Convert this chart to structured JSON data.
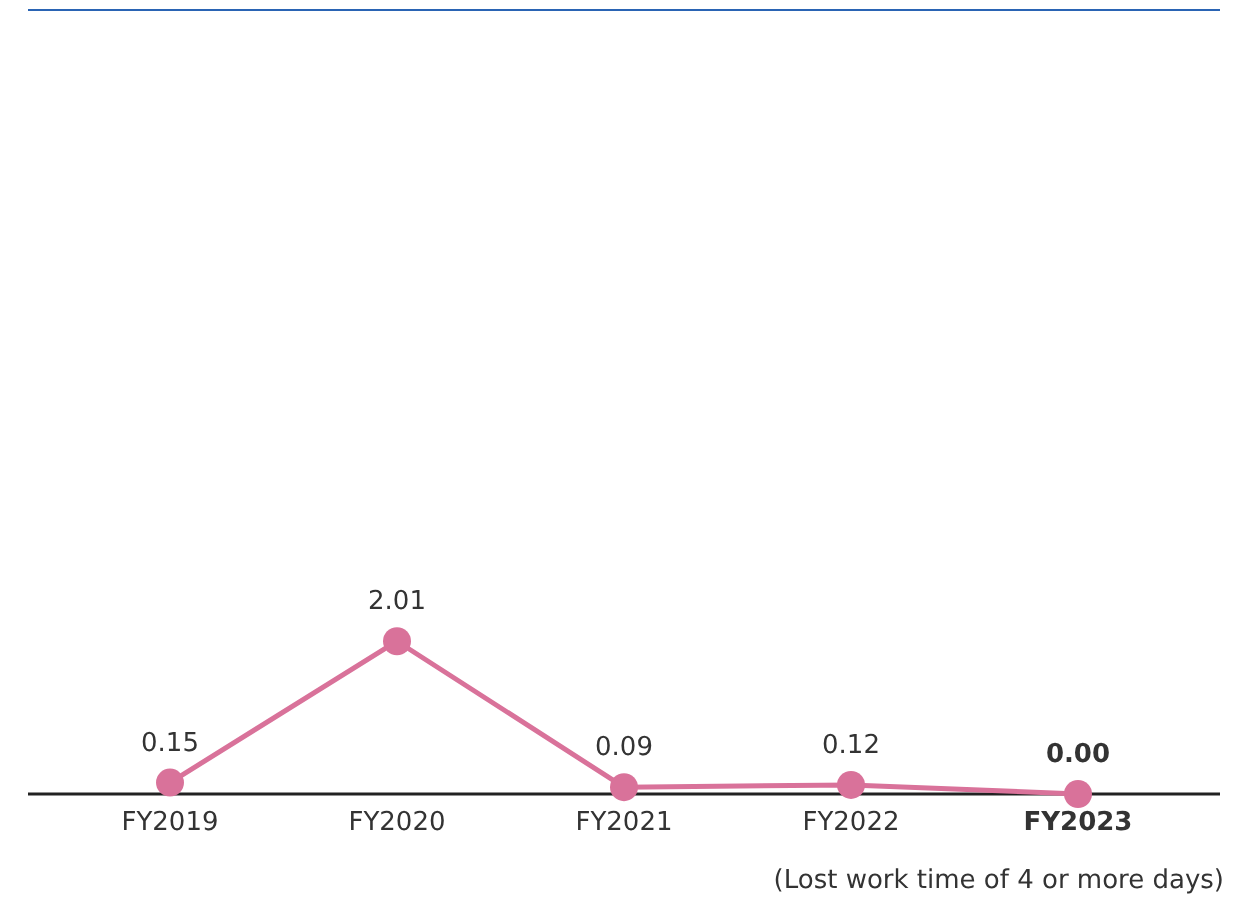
{
  "chart_data": {
    "type": "line",
    "categories": [
      "FY2019",
      "FY2020",
      "FY2021",
      "FY2022",
      "FY2023"
    ],
    "series": [
      {
        "color": "#d9729a",
        "values": [
          0.15,
          2.01,
          0.09,
          0.12,
          0.0
        ],
        "value_labels": [
          "0.15",
          "2.01",
          "0.09",
          "0.12",
          "0.00"
        ]
      }
    ],
    "marker": "circle",
    "line_style": "solid",
    "annotations": [
      "(Lost work time of 4 or more days)"
    ]
  }
}
